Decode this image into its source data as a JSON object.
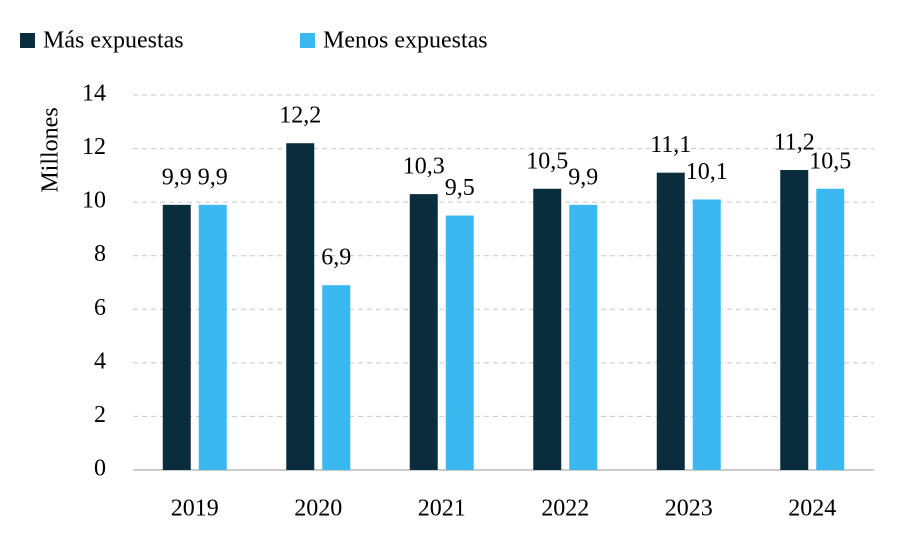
{
  "chart_data": {
    "type": "bar",
    "y_label": "Millones",
    "categories": [
      "2019",
      "2020",
      "2021",
      "2022",
      "2023",
      "2024"
    ],
    "series": [
      {
        "name": "Más expuestas",
        "color": "#0a2d3e",
        "values": [
          9.9,
          12.2,
          10.3,
          10.5,
          11.1,
          11.2
        ],
        "value_labels": [
          "9,9",
          "12,2",
          "10,3",
          "10,5",
          "11,1",
          "11,2"
        ]
      },
      {
        "name": "Menos expuestas",
        "color": "#3bb8f0",
        "values": [
          9.9,
          6.9,
          9.5,
          9.9,
          10.1,
          10.5
        ],
        "value_labels": [
          "9,9",
          "6,9",
          "9,5",
          "9,9",
          "10,1",
          "10,5"
        ]
      }
    ],
    "ylim": [
      0,
      14
    ],
    "yticks": [
      0,
      2,
      4,
      6,
      8,
      10,
      12,
      14
    ],
    "grid": true,
    "legend": "top"
  }
}
